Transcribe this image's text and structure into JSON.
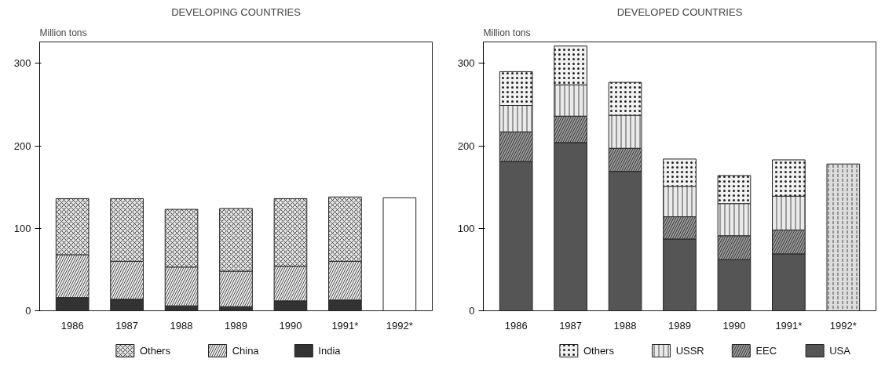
{
  "chart_data": [
    {
      "type": "bar",
      "title": "DEVELOPING COUNTRIES",
      "ylabel": "Million tons",
      "stacked": true,
      "categories": [
        "1986",
        "1987",
        "1988",
        "1989",
        "1990",
        "1991*",
        "1992*"
      ],
      "ylim": [
        0,
        326
      ],
      "yticks": [
        0,
        100,
        200,
        300
      ],
      "grid": false,
      "legend": "bottom",
      "series": [
        {
          "name": "India",
          "color": "#333333",
          "values": [
            16,
            14,
            6,
            5,
            12,
            13,
            null
          ]
        },
        {
          "name": "China",
          "color": "#eeeeee",
          "values": [
            52,
            46,
            47,
            43,
            42,
            47,
            null
          ]
        },
        {
          "name": "Others",
          "color": "#e4e4e4",
          "values": [
            68,
            76,
            70,
            76,
            82,
            78,
            null
          ]
        },
        {
          "color": "#ffffff",
          "values": [
            null,
            null,
            null,
            null,
            null,
            null,
            137
          ]
        }
      ]
    },
    {
      "type": "bar",
      "title": "DEVELOPED COUNTRIES",
      "ylabel": "Million tons",
      "stacked": true,
      "categories": [
        "1986",
        "1987",
        "1988",
        "1989",
        "1990",
        "1991*",
        "1992*"
      ],
      "ylim": [
        0,
        326
      ],
      "yticks": [
        0,
        100,
        200,
        300
      ],
      "grid": false,
      "legend": "bottom",
      "series": [
        {
          "name": "USA",
          "color": "#555555",
          "values": [
            181,
            204,
            169,
            87,
            62,
            69,
            null
          ]
        },
        {
          "name": "EEC",
          "color": "#999999",
          "values": [
            36,
            32,
            28,
            27,
            29,
            29,
            null
          ]
        },
        {
          "name": "USSR",
          "color": "#eaeaea",
          "values": [
            32,
            38,
            40,
            37,
            39,
            41,
            null
          ]
        },
        {
          "name": "Others",
          "color": "#f2f2f2",
          "values": [
            41,
            47,
            40,
            33,
            34,
            44,
            null
          ]
        },
        {
          "color": "#dddddd",
          "values": [
            null,
            null,
            null,
            null,
            null,
            null,
            178
          ]
        }
      ]
    }
  ]
}
